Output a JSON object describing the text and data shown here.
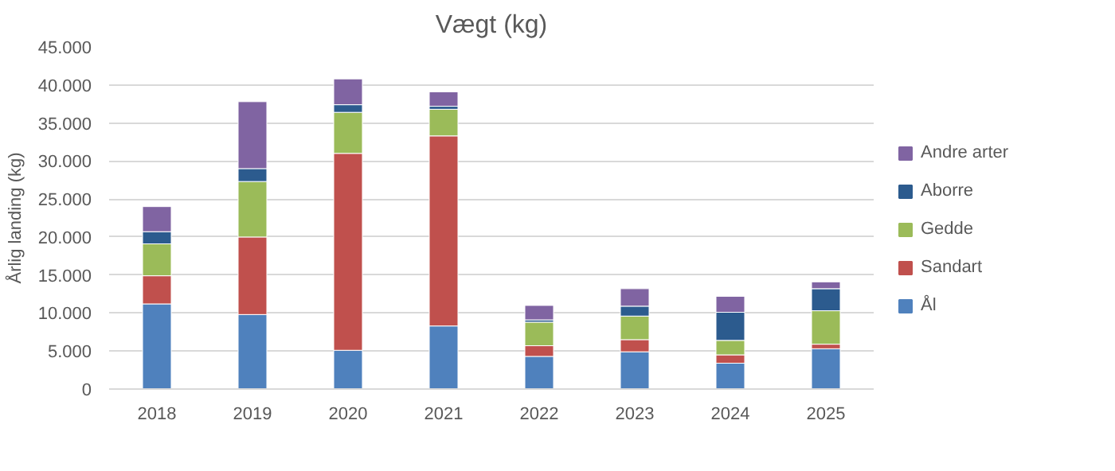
{
  "chart_data": {
    "type": "bar",
    "title": "Vægt (kg)",
    "ylabel": "Årlig landing (kg)",
    "categories": [
      "2018",
      "2019",
      "2020",
      "2021",
      "2022",
      "2023",
      "2024",
      "2025"
    ],
    "stacked": true,
    "series": [
      {
        "name": "Ål",
        "color": "#4f81bd",
        "values": [
          11200,
          9800,
          5100,
          8300,
          4300,
          4900,
          3400,
          5300
        ]
      },
      {
        "name": "Sandart",
        "color": "#c0504d",
        "values": [
          3700,
          10200,
          25900,
          25000,
          1400,
          1600,
          1100,
          600
        ]
      },
      {
        "name": "Gedde",
        "color": "#9bbb59",
        "values": [
          4200,
          7300,
          5400,
          3500,
          3100,
          3100,
          1900,
          4400
        ]
      },
      {
        "name": "Aborre",
        "color": "#2c5b8e",
        "values": [
          1600,
          1700,
          1000,
          400,
          300,
          1300,
          3700,
          2900
        ]
      },
      {
        "name": "Andre arter",
        "color": "#8064a2",
        "values": [
          3300,
          8800,
          3400,
          1900,
          1900,
          2300,
          2100,
          900
        ]
      }
    ],
    "ylim": [
      0,
      45000
    ],
    "yticks": [
      {
        "value": 0,
        "label": "0"
      },
      {
        "value": 5000,
        "label": "5.000"
      },
      {
        "value": 10000,
        "label": "10.000"
      },
      {
        "value": 15000,
        "label": "15.000"
      },
      {
        "value": 20000,
        "label": "20.000"
      },
      {
        "value": 25000,
        "label": "25.000"
      },
      {
        "value": 30000,
        "label": "30.000"
      },
      {
        "value": 35000,
        "label": "35.000"
      },
      {
        "value": 40000,
        "label": "40.000"
      },
      {
        "value": 45000,
        "label": "45.000"
      }
    ],
    "grid": "y",
    "legend": "right"
  }
}
